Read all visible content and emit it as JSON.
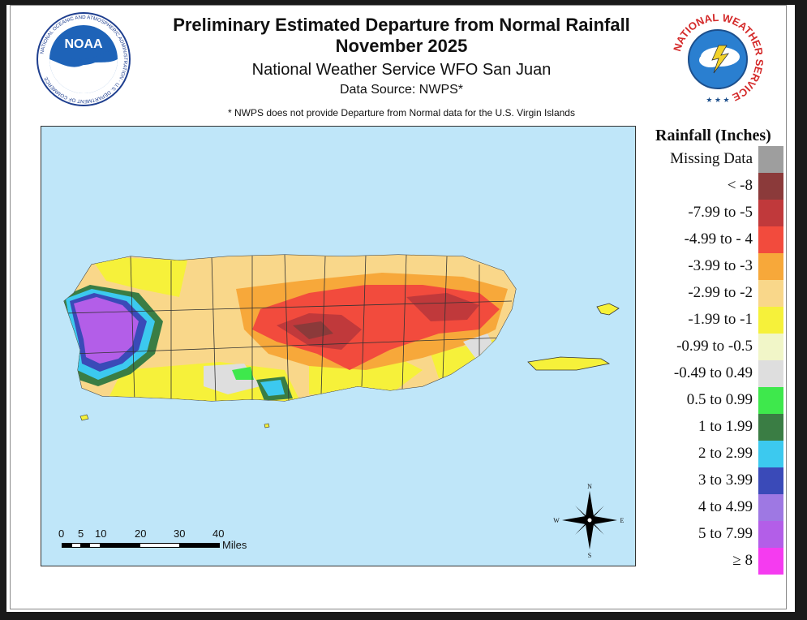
{
  "header": {
    "title_line1": "Preliminary Estimated Departure from Normal Rainfall",
    "title_line2": "November 2025",
    "subtitle": "National Weather Service WFO San Juan",
    "data_source": "Data Source: NWPS*",
    "footnote": "* NWPS does not provide Departure from Normal data for the U.S. Virgin Islands"
  },
  "logos": {
    "noaa_text": "NOAA",
    "noaa_ring": "NATIONAL OCEANIC AND ATMOSPHERIC ADMINISTRATION · U.S. DEPARTMENT OF COMMERCE",
    "nws_ring": "NATIONAL WEATHER SERVICE"
  },
  "legend": {
    "title": "Rainfall (Inches)",
    "items": [
      {
        "label": "Missing Data",
        "color": "#9e9e9e"
      },
      {
        "label": "< -8",
        "color": "#8b3a3a"
      },
      {
        "label": "-7.99 to -5",
        "color": "#c0393b"
      },
      {
        "label": "-4.99 to - 4",
        "color": "#f24b3d"
      },
      {
        "label": "-3.99 to  -3",
        "color": "#f7a83a"
      },
      {
        "label": "-2.99 to -2",
        "color": "#f9d78a"
      },
      {
        "label": "-1.99 to -1",
        "color": "#f6f13a"
      },
      {
        "label": "-0.99 to  -0.5",
        "color": "#f1f6c8"
      },
      {
        "label": "-0.49 to 0.49",
        "color": "#dedede"
      },
      {
        "label": "0.5 to  0.99",
        "color": "#3ee84c"
      },
      {
        "label": "1 to 1.99",
        "color": "#3a7d44"
      },
      {
        "label": "2 to 2.99",
        "color": "#3cc9ef"
      },
      {
        "label": "3 to 3.99",
        "color": "#3a4ab8"
      },
      {
        "label": "4 to 4.99",
        "color": "#9e78e3"
      },
      {
        "label": "5 to 7.99",
        "color": "#b35ee8"
      },
      {
        "label": "≥  8",
        "color": "#f53bf0"
      }
    ]
  },
  "scale_bar": {
    "ticks": [
      "0",
      "5",
      "10",
      "20",
      "30",
      "40"
    ],
    "unit": "Miles"
  },
  "compass": {
    "n": "N",
    "s": "S",
    "e": "E",
    "w": "W"
  }
}
